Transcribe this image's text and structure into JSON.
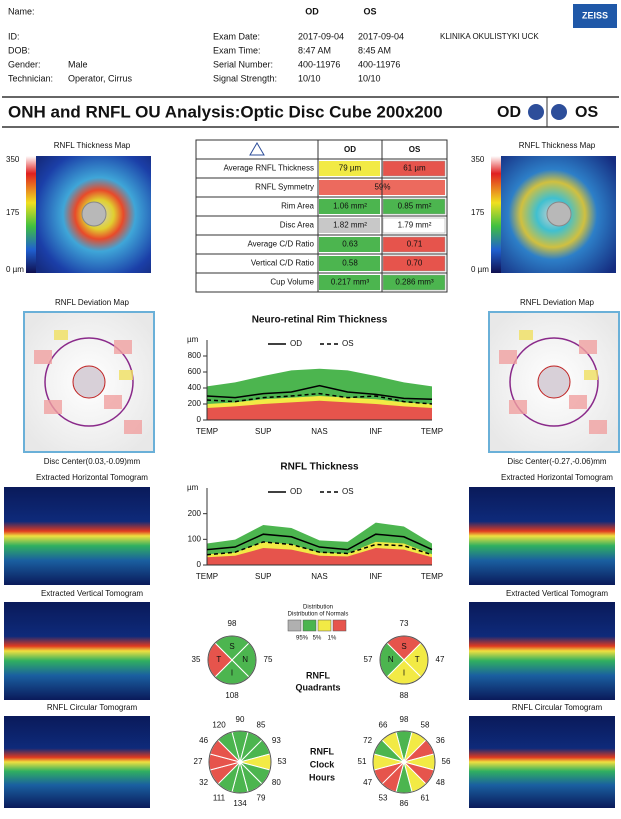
{
  "header": {
    "name_label": "Name:",
    "id_label": "ID:",
    "dob_label": "DOB:",
    "gender_label": "Gender:",
    "gender": "Male",
    "technician_label": "Technician:",
    "technician": "Operator, Cirrus",
    "eye_columns": [
      "OD",
      "OS"
    ],
    "exam_fields": [
      {
        "label": "Exam Date:",
        "od": "2017-09-04",
        "os": "2017-09-04"
      },
      {
        "label": "Exam Time:",
        "od": "8:47 AM",
        "os": "8:45 AM"
      },
      {
        "label": "Serial Number:",
        "od": "400-11976",
        "os": "400-11976"
      },
      {
        "label": "Signal Strength:",
        "od": "10/10",
        "os": "10/10"
      }
    ],
    "clinic": "KLINIKA OKULISTYKI UCK",
    "brand": "ZEISS"
  },
  "title": {
    "text": "ONH and RNFL OU Analysis:Optic Disc Cube 200x200",
    "od": "OD",
    "os": "OS"
  },
  "panels": {
    "thickness_map": "RNFL Thickness Map",
    "scale": [
      "350",
      "175",
      "0 µm"
    ],
    "deviation_map": "RNFL Deviation Map",
    "disc_center_od": "Disc Center(0.03,-0.09)mm",
    "disc_center_os": "Disc Center(-0.27,-0.06)mm",
    "horizontal": "Extracted Horizontal Tomogram",
    "vertical": "Extracted Vertical Tomogram",
    "circular": "RNFL Circular Tomogram"
  },
  "table": {
    "header": [
      "OD",
      "OS"
    ],
    "rows": [
      {
        "label": "Average RNFL Thickness",
        "od": "79 µm",
        "os": "61 µm",
        "od_color": "#f2ea45",
        "os_color": "#e6544c"
      },
      {
        "label": "RNFL Symmetry",
        "both": "59%",
        "both_color": "#ec6a5e"
      },
      {
        "label": "Rim Area",
        "od": "1.06 mm²",
        "os": "0.85 mm²",
        "od_color": "#4cb54f",
        "os_color": "#4cb54f"
      },
      {
        "label": "Disc Area",
        "od": "1.82 mm²",
        "os": "1.79 mm²",
        "od_color": "#c8c8c8",
        "os_color": "#ffffff"
      },
      {
        "label": "Average C/D Ratio",
        "od": "0.63",
        "os": "0.71",
        "od_color": "#4cb54f",
        "os_color": "#e6544c"
      },
      {
        "label": "Vertical C/D Ratio",
        "od": "0.58",
        "os": "0.70",
        "od_color": "#4cb54f",
        "os_color": "#e6544c"
      },
      {
        "label": "Cup Volume",
        "od": "0.217 mm³",
        "os": "0.286 mm³",
        "od_color": "#4cb54f",
        "os_color": "#4cb54f"
      }
    ]
  },
  "chart_data": [
    {
      "type": "line",
      "title": "Neuro-retinal Rim Thickness",
      "y_label": "µm",
      "categories": [
        "TEMP",
        null,
        "SUP",
        null,
        "NAS",
        null,
        "INF",
        null,
        "TEMP"
      ],
      "series": [
        {
          "name": "OD",
          "color": "#000000",
          "dash": false,
          "values": [
            300,
            280,
            330,
            350,
            430,
            350,
            320,
            270,
            260
          ]
        },
        {
          "name": "OS",
          "color": "#000000",
          "dash": true,
          "values": [
            250,
            230,
            280,
            300,
            330,
            280,
            300,
            230,
            200
          ]
        }
      ],
      "ylim": [
        0,
        1000
      ],
      "yticks": [
        0,
        200,
        400,
        600,
        800
      ]
    },
    {
      "type": "line",
      "title": "RNFL Thickness",
      "y_label": "µm",
      "categories": [
        "TEMP",
        null,
        "SUP",
        null,
        "NAS",
        null,
        "INF",
        null,
        "TEMP"
      ],
      "series": [
        {
          "name": "OD",
          "color": "#000000",
          "dash": false,
          "values": [
            60,
            70,
            120,
            110,
            70,
            60,
            120,
            110,
            60
          ]
        },
        {
          "name": "OS",
          "color": "#000000",
          "dash": true,
          "values": [
            40,
            50,
            90,
            80,
            50,
            45,
            80,
            75,
            40
          ]
        }
      ],
      "ylim": [
        0,
        300
      ],
      "yticks": [
        0,
        100,
        200
      ]
    }
  ],
  "quadrants": {
    "label": [
      "RNFL",
      "Quadrants"
    ],
    "legend_title": [
      "Distribution",
      "Distribution of Normals"
    ],
    "legend_labels": [
      "95%",
      "5%",
      "1%"
    ],
    "legend_colors": [
      "#b0b0b0",
      "#4cb54f",
      "#f2ea45",
      "#e6544c"
    ],
    "od": {
      "letters": [
        "S",
        "N",
        "I",
        "T"
      ],
      "values": [
        98,
        75,
        108,
        35
      ],
      "colors": [
        "#4cb54f",
        "#4cb54f",
        "#4cb54f",
        "#e6544c"
      ]
    },
    "os": {
      "letters": [
        "S",
        "T",
        "I",
        "N"
      ],
      "values": [
        73,
        47,
        88,
        57
      ],
      "colors": [
        "#e6544c",
        "#f2ea45",
        "#f2ea45",
        "#4cb54f"
      ]
    }
  },
  "clock_hours": {
    "label": [
      "RNFL",
      "Clock",
      "Hours"
    ],
    "od": {
      "values": [
        90,
        85,
        93,
        53,
        80,
        79,
        134,
        111,
        32,
        27,
        46,
        120
      ],
      "colors": [
        "#4cb54f",
        "#4cb54f",
        "#4cb54f",
        "#f2ea45",
        "#4cb54f",
        "#4cb54f",
        "#4cb54f",
        "#4cb54f",
        "#e6544c",
        "#e6544c",
        "#e6544c",
        "#4cb54f"
      ]
    },
    "os": {
      "values": [
        98,
        58,
        36,
        56,
        48,
        61,
        86,
        53,
        47,
        51,
        72,
        66
      ],
      "colors": [
        "#4cb54f",
        "#f2ea45",
        "#e6544c",
        "#f2ea45",
        "#e6544c",
        "#f2ea45",
        "#4cb54f",
        "#e6544c",
        "#e6544c",
        "#f2ea45",
        "#4cb54f",
        "#f2ea45"
      ]
    }
  }
}
